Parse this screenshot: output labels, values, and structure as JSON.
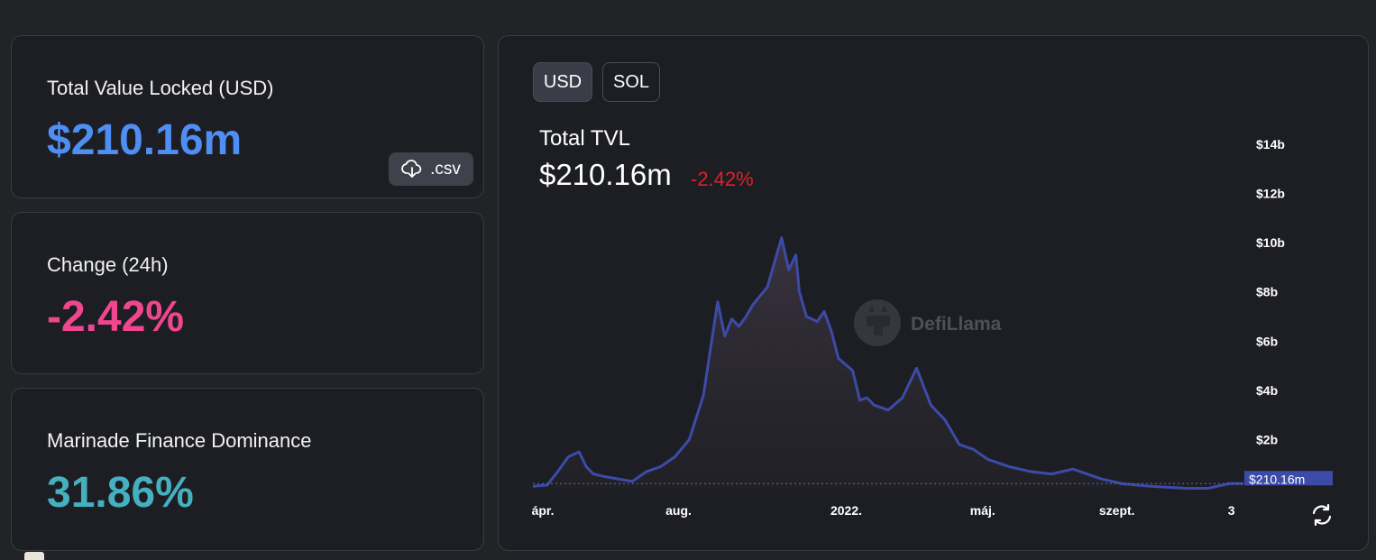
{
  "stats": {
    "tvl": {
      "label": "Total Value Locked (USD)",
      "value": "$210.16m",
      "value_color": "#4f8ef3",
      "csv_label": ".csv"
    },
    "change": {
      "label": "Change (24h)",
      "value": "-2.42%",
      "value_color": "#f0468f"
    },
    "dominance": {
      "label": "Marinade Finance Dominance",
      "value": "31.86%",
      "value_color": "#45b0bf"
    }
  },
  "chart_panel": {
    "denominations": [
      "USD",
      "SOL"
    ],
    "active_denomination": "USD",
    "title": "Total TVL",
    "value": "$210.16m",
    "change": "-2.42%",
    "watermark": "DefiLlama",
    "current_value_label": "$210.16m"
  },
  "chart_data": {
    "type": "area",
    "title": "Total TVL",
    "line_color": "#3c4ba8",
    "y_ticks": [
      "$2b",
      "$4b",
      "$6b",
      "$8b",
      "$10b",
      "$12b",
      "$14b"
    ],
    "y_tick_values": [
      2,
      4,
      6,
      8,
      10,
      12,
      14
    ],
    "ylim": [
      0,
      14
    ],
    "x_ticks": [
      {
        "label": "ápr.",
        "pos": 0.014
      },
      {
        "label": "aug.",
        "pos": 0.205
      },
      {
        "label": "2022.",
        "pos": 0.441
      },
      {
        "label": "máj.",
        "pos": 0.633
      },
      {
        "label": "szept.",
        "pos": 0.822
      },
      {
        "label": "3",
        "pos": 0.983
      }
    ],
    "x": [
      0,
      0.02,
      0.035,
      0.05,
      0.065,
      0.075,
      0.085,
      0.1,
      0.12,
      0.14,
      0.16,
      0.18,
      0.2,
      0.22,
      0.24,
      0.26,
      0.27,
      0.28,
      0.29,
      0.3,
      0.31,
      0.33,
      0.35,
      0.36,
      0.37,
      0.375,
      0.385,
      0.4,
      0.41,
      0.42,
      0.43,
      0.45,
      0.46,
      0.47,
      0.48,
      0.5,
      0.52,
      0.54,
      0.56,
      0.58,
      0.6,
      0.62,
      0.64,
      0.66,
      0.67,
      0.7,
      0.73,
      0.76,
      0.8,
      0.83,
      0.87,
      0.9,
      0.92,
      0.93,
      0.95,
      0.98,
      1.0
    ],
    "values": [
      0.1,
      0.15,
      0.7,
      1.3,
      1.5,
      0.9,
      0.6,
      0.5,
      0.4,
      0.3,
      0.7,
      0.9,
      1.3,
      2.0,
      3.8,
      7.6,
      6.2,
      6.9,
      6.6,
      7.0,
      7.5,
      8.2,
      10.2,
      8.9,
      9.5,
      8.0,
      7.0,
      6.8,
      7.2,
      6.4,
      5.3,
      4.8,
      3.6,
      3.7,
      3.4,
      3.2,
      3.7,
      4.9,
      3.4,
      2.8,
      1.8,
      1.6,
      1.2,
      1.0,
      0.9,
      0.7,
      0.6,
      0.8,
      0.4,
      0.2,
      0.1,
      0.05,
      0.02,
      0.02,
      0.02,
      0.21,
      0.21
    ]
  }
}
